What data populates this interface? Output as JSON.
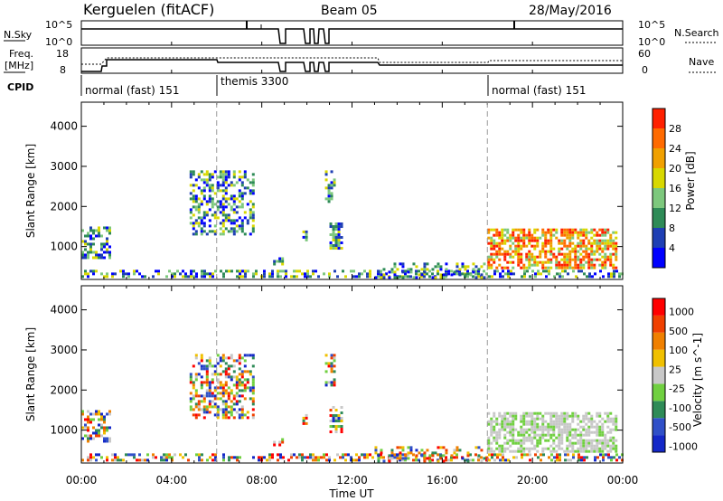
{
  "header": {
    "station": "Kerguelen (fitACF)",
    "beam": "Beam 05",
    "date": "28/May/2016"
  },
  "status_panels": {
    "nsky_label": "N.Sky",
    "nsky_ticks": [
      "10^5",
      "10^0"
    ],
    "nsearch_label": "N.Search",
    "nsearch_ticks": [
      "10^5",
      "10^0"
    ],
    "freq_label_1": "Freq.",
    "freq_label_2": "[MHz]",
    "freq_ticks": [
      "18",
      "8"
    ],
    "nave_label": "Nave",
    "nave_ticks": [
      "60",
      "0"
    ],
    "cpid_label": "CPID",
    "cpid_segments": [
      {
        "label": "normal (fast) 151",
        "start_hour": 0
      },
      {
        "label": "themis 3300",
        "start_hour": 6
      },
      {
        "label": "normal (fast) 151",
        "start_hour": 18
      }
    ]
  },
  "x_axis": {
    "label": "Time UT",
    "ticks": [
      "00:00",
      "04:00",
      "08:00",
      "12:00",
      "16:00",
      "20:00",
      "00:00"
    ]
  },
  "chart_data": [
    {
      "type": "heatmap",
      "parameter": "power",
      "ylabel": "Slant Range [km]",
      "yticks": [
        1000,
        2000,
        3000,
        4000
      ],
      "ylim": [
        180,
        4600
      ],
      "xlim_hours": [
        0,
        24
      ],
      "colorbar_label": "Power [dB]",
      "colorbar_ticks": [
        "28",
        "24",
        "20",
        "16",
        "12",
        "8",
        "4"
      ],
      "colors": [
        "#0000ff",
        "#1e3fb4",
        "#2e8b57",
        "#7dc87d",
        "#d8d800",
        "#f0a000",
        "#ff6a00",
        "#ff2000"
      ]
    },
    {
      "type": "heatmap",
      "parameter": "velocity",
      "ylabel": "Slant Range [km]",
      "yticks": [
        1000,
        2000,
        3000,
        4000
      ],
      "ylim": [
        180,
        4600
      ],
      "xlim_hours": [
        0,
        24
      ],
      "colorbar_label": "Velocity [m s^-1]",
      "colorbar_ticks": [
        "1000",
        "500",
        "100",
        "25",
        "-25",
        "-100",
        "-500",
        "-1000"
      ],
      "colors": [
        "#1428c8",
        "#3050c8",
        "#2e8b57",
        "#70d040",
        "#c8c8c8",
        "#f0c000",
        "#f08000",
        "#f04000",
        "#ff0000"
      ]
    }
  ]
}
